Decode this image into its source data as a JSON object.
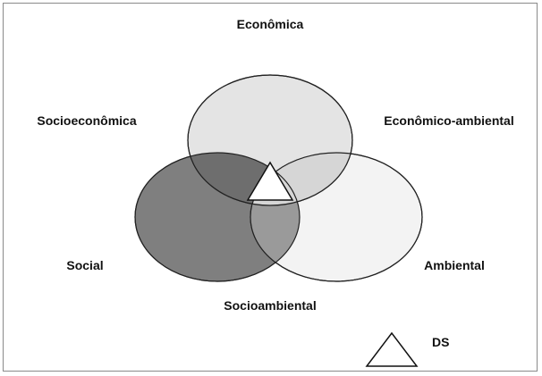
{
  "diagram": {
    "labels": {
      "economica": "Econômica",
      "socioeconomica": "Socioeconômica",
      "economico_ambiental": "Econômico-ambiental",
      "social": "Social",
      "ambiental": "Ambiental",
      "socioambiental": "Socioambiental"
    },
    "legend": {
      "label": "DS"
    },
    "colors": {
      "economica_fill": "#e4e4e4",
      "social_fill": "#7f7f7f",
      "ambiental_fill": "#f3f3f3",
      "outline": "#222222"
    }
  }
}
